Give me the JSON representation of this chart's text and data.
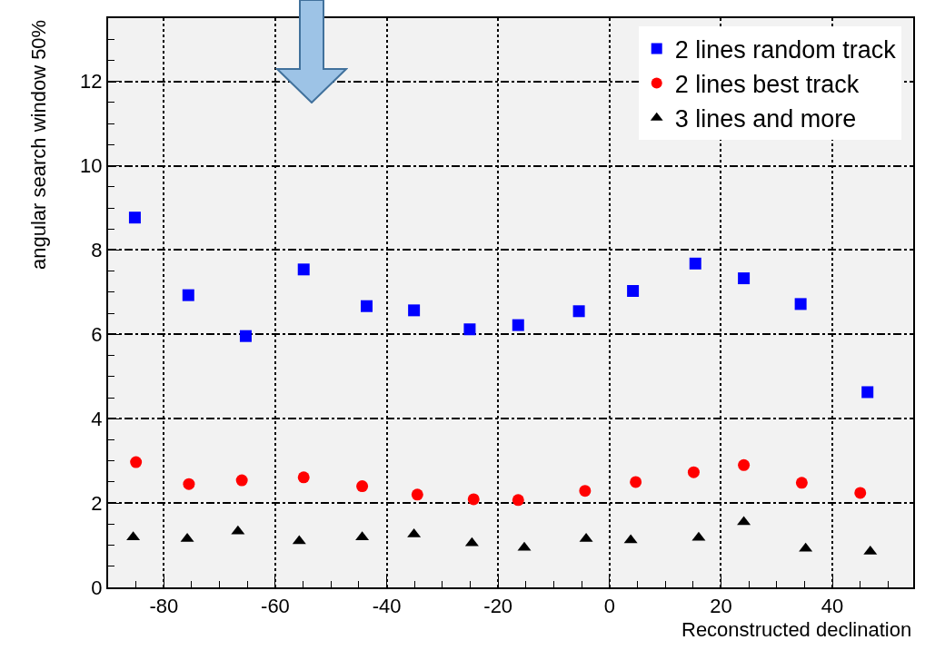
{
  "chart_data": {
    "type": "scatter",
    "xlabel": "Reconstructed declination",
    "ylabel": "angular search window 50%",
    "xlim": [
      -90,
      54.5
    ],
    "xticks": [
      -80,
      -60,
      -40,
      -20,
      0,
      20,
      40
    ],
    "ylim": [
      0,
      13.5
    ],
    "yticks": [
      0,
      2,
      4,
      6,
      8,
      10,
      12
    ],
    "grid": true,
    "legend": "top right",
    "series": [
      {
        "name": "2 lines random track",
        "color": "#0000ff",
        "marker": "square",
        "x": [
          -85.2,
          -75.6,
          -65.3,
          -54.9,
          -43.6,
          -35.1,
          -25.1,
          -16.4,
          -5.5,
          4.2,
          15.4,
          24.1,
          34.3,
          46.3
        ],
        "values": [
          8.77,
          6.93,
          5.96,
          7.54,
          6.67,
          6.57,
          6.12,
          6.22,
          6.55,
          7.03,
          7.68,
          7.33,
          6.72,
          4.63
        ]
      },
      {
        "name": "2 lines best track",
        "color": "#ff0000",
        "marker": "circle",
        "x": [
          -85.0,
          -75.5,
          -66.0,
          -54.9,
          -44.4,
          -34.5,
          -24.4,
          -16.4,
          -4.4,
          4.7,
          15.1,
          24.1,
          34.5,
          45.0
        ],
        "values": [
          2.97,
          2.45,
          2.54,
          2.61,
          2.4,
          2.2,
          2.09,
          2.07,
          2.29,
          2.5,
          2.73,
          2.9,
          2.48,
          2.24
        ]
      },
      {
        "name": "3 lines and more",
        "color": "#000000",
        "marker": "triangle",
        "x": [
          -85.5,
          -75.8,
          -66.7,
          -55.7,
          -44.4,
          -35.1,
          -24.7,
          -15.3,
          -4.2,
          3.8,
          16.0,
          24.1,
          35.2,
          46.8
        ],
        "values": [
          1.19,
          1.15,
          1.33,
          1.1,
          1.19,
          1.26,
          1.05,
          0.94,
          1.15,
          1.12,
          1.18,
          1.55,
          0.92,
          0.85
        ]
      }
    ]
  }
}
